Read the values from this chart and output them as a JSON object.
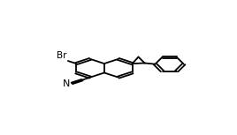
{
  "background": "#ffffff",
  "lc": "#000000",
  "lw": 1.3,
  "figsize": [
    2.68,
    1.53
  ],
  "dpi": 100,
  "mcx": 0.33,
  "mcy": 0.5,
  "msc": 0.088,
  "doff": 0.009,
  "br_label": "Br",
  "n_label": "N",
  "br_fontsize": 7.5,
  "n_fontsize": 8.0
}
